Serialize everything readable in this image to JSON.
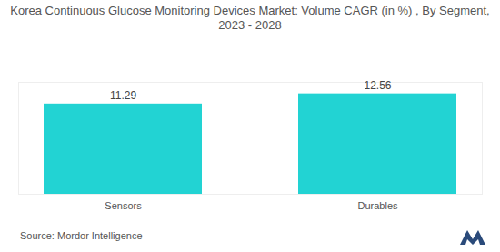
{
  "chart_data": {
    "type": "bar",
    "title": "Korea Continuous Glucose Monitoring Devices Market: Volume CAGR (in %) , By Segment, 2023 - 2028",
    "categories": [
      "Sensors",
      "Durables"
    ],
    "values": [
      11.29,
      12.56
    ],
    "color": "#22d3d3",
    "ylim": [
      0,
      14
    ],
    "data_labels": true,
    "tick_labels": "x",
    "grid": false,
    "source": "Source: Mordor Intelligence"
  }
}
